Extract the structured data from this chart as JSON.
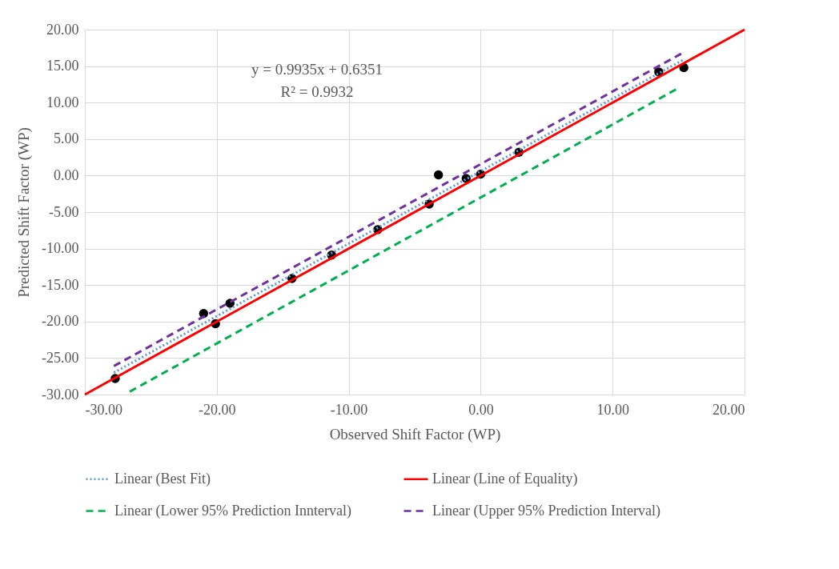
{
  "chart_data": {
    "type": "scatter",
    "xlabel": "Observed Shift Factor (WP)",
    "ylabel": "Predicted Shift Factor (WP)",
    "annotations": [
      "y = 0.9935x + 0.6351",
      "R² = 0.9932"
    ],
    "xlim": [
      -30,
      20
    ],
    "ylim": [
      -30,
      20
    ],
    "xticks": [
      {
        "value": -30,
        "label": "-30.00"
      },
      {
        "value": -20,
        "label": "-20.00"
      },
      {
        "value": -10,
        "label": "-10.00"
      },
      {
        "value": 0,
        "label": "0.00"
      },
      {
        "value": 10,
        "label": "10.00"
      },
      {
        "value": 20,
        "label": "20.00"
      }
    ],
    "yticks": [
      {
        "value": -30,
        "label": "-30.00"
      },
      {
        "value": -25,
        "label": "-25.00"
      },
      {
        "value": -20,
        "label": "-20.00"
      },
      {
        "value": -15,
        "label": "-15.00"
      },
      {
        "value": -10,
        "label": "-10.00"
      },
      {
        "value": -5,
        "label": "-5.00"
      },
      {
        "value": 0,
        "label": "0.00"
      },
      {
        "value": 5,
        "label": "5.00"
      },
      {
        "value": 10,
        "label": "10.00"
      },
      {
        "value": 15,
        "label": "15.00"
      },
      {
        "value": 20,
        "label": "20.00"
      }
    ],
    "grid": true,
    "legend": "bottom",
    "series": [
      {
        "color": "#000000",
        "marker": "circle",
        "x": [
          -27.7,
          -21.0,
          -20.1,
          -19.0,
          -14.3,
          -11.3,
          -7.8,
          -3.9,
          -3.2,
          -1.1,
          0.0,
          2.9,
          13.5,
          15.4
        ],
        "values": [
          -27.8,
          -18.9,
          -20.3,
          -17.5,
          -14.1,
          -10.9,
          -7.4,
          -3.9,
          0.1,
          -0.4,
          0.2,
          3.2,
          14.2,
          14.8
        ]
      },
      {
        "type": "line",
        "name": "Linear (Best Fit)",
        "color": "#5b9bd5",
        "line_style": "dotted",
        "x": [
          -27.8,
          15.3
        ],
        "values": [
          -27.0,
          15.8
        ]
      },
      {
        "type": "line",
        "name": "Linear (Line of Equality)",
        "color": "#ff0000",
        "line_style": "solid",
        "x": [
          -30,
          20
        ],
        "values": [
          -30,
          20
        ]
      },
      {
        "type": "line",
        "name": "Linear (Lower 95% Prediction Innterval)",
        "color": "#00b050",
        "line_style": "dashed",
        "x": [
          -26.6,
          14.8
        ],
        "values": [
          -29.6,
          11.8
        ]
      },
      {
        "type": "line",
        "name": "Linear (Upper 95% Prediction Interval)",
        "color": "#7030a0",
        "line_style": "dashed",
        "x": [
          -27.8,
          15.2
        ],
        "values": [
          -26.1,
          16.7
        ]
      }
    ]
  }
}
